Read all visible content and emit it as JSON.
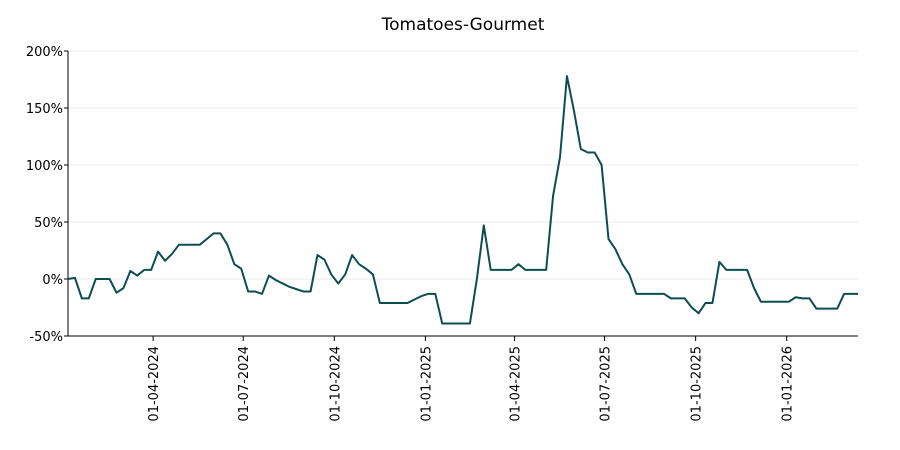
{
  "chart_data": {
    "type": "line",
    "title": "Tomatoes-Gourmet",
    "x": [
      "2024-01-06",
      "2024-01-13",
      "2024-01-20",
      "2024-01-27",
      "2024-02-03",
      "2024-02-10",
      "2024-02-17",
      "2024-02-24",
      "2024-03-02",
      "2024-03-09",
      "2024-03-16",
      "2024-03-23",
      "2024-03-30",
      "2024-04-06",
      "2024-04-13",
      "2024-04-20",
      "2024-04-27",
      "2024-05-04",
      "2024-05-11",
      "2024-05-18",
      "2024-05-25",
      "2024-06-01",
      "2024-06-08",
      "2024-06-15",
      "2024-06-22",
      "2024-06-29",
      "2024-07-06",
      "2024-07-13",
      "2024-07-20",
      "2024-07-27",
      "2024-08-03",
      "2024-08-10",
      "2024-08-17",
      "2024-08-24",
      "2024-08-31",
      "2024-09-07",
      "2024-09-14",
      "2024-09-21",
      "2024-09-28",
      "2024-10-05",
      "2024-10-12",
      "2024-10-19",
      "2024-10-26",
      "2024-11-02",
      "2024-11-09",
      "2024-11-16",
      "2024-11-23",
      "2024-11-30",
      "2024-12-07",
      "2024-12-14",
      "2024-12-21",
      "2024-12-28",
      "2025-01-04",
      "2025-01-11",
      "2025-01-18",
      "2025-01-25",
      "2025-02-01",
      "2025-02-08",
      "2025-02-15",
      "2025-02-22",
      "2025-03-01",
      "2025-03-08",
      "2025-03-15",
      "2025-03-22",
      "2025-03-29",
      "2025-04-05",
      "2025-04-12",
      "2025-04-19",
      "2025-04-26",
      "2025-05-03",
      "2025-05-10",
      "2025-05-17",
      "2025-05-24",
      "2025-05-31",
      "2025-06-07",
      "2025-06-14",
      "2025-06-21",
      "2025-06-28",
      "2025-07-05",
      "2025-07-12",
      "2025-07-19",
      "2025-07-26",
      "2025-08-02",
      "2025-08-09",
      "2025-08-16",
      "2025-08-23",
      "2025-08-30",
      "2025-09-06",
      "2025-09-13",
      "2025-09-20",
      "2025-09-27",
      "2025-10-04",
      "2025-10-11",
      "2025-10-18",
      "2025-10-25",
      "2025-11-01",
      "2025-11-08",
      "2025-11-15",
      "2025-11-22",
      "2025-11-29",
      "2025-12-06",
      "2025-12-13",
      "2025-12-20",
      "2025-12-27",
      "2026-01-03",
      "2026-01-10",
      "2026-01-17",
      "2026-01-24",
      "2026-01-31",
      "2026-02-07",
      "2026-02-14",
      "2026-02-21",
      "2026-02-28",
      "2026-03-07",
      "2026-03-14"
    ],
    "series": [
      {
        "color": "#0e4d4f",
        "values": [
          0,
          1,
          -17,
          -17,
          0,
          0,
          0,
          -12,
          -8,
          7,
          3,
          8,
          8,
          24,
          16,
          22,
          30,
          30,
          30,
          30,
          35,
          40,
          40,
          30,
          13,
          9,
          -11,
          -11,
          -13,
          3,
          -1,
          -4,
          -7,
          -9,
          -11,
          -11,
          21,
          17,
          4,
          -4,
          4,
          21,
          13,
          9,
          4,
          -21,
          -21,
          -21,
          -21,
          -21,
          -18,
          -15,
          -13,
          -13,
          -39,
          -39,
          -39,
          -39,
          -39,
          0,
          47,
          8,
          8,
          8,
          8,
          13,
          8,
          8,
          8,
          8,
          73,
          107,
          178,
          148,
          114,
          111,
          111,
          100,
          35,
          26,
          13,
          4,
          -13,
          -13,
          -13,
          -13,
          -13,
          -17,
          -17,
          -17,
          -25,
          -30,
          -21,
          -21,
          15,
          8,
          8,
          8,
          8,
          -8,
          -20,
          -20,
          -20,
          -20,
          -20,
          -16,
          -17,
          -17,
          -26,
          -26,
          -26,
          -26,
          -13,
          -13,
          -13
        ]
      }
    ],
    "xlim": [
      "2024-01-06",
      "2026-03-14"
    ],
    "xticks": [
      {
        "value": "2024-04-01",
        "label": "01-04-2024"
      },
      {
        "value": "2024-07-01",
        "label": "01-07-2024"
      },
      {
        "value": "2024-10-01",
        "label": "01-10-2024"
      },
      {
        "value": "2025-01-01",
        "label": "01-01-2025"
      },
      {
        "value": "2025-04-01",
        "label": "01-04-2025"
      },
      {
        "value": "2025-07-01",
        "label": "01-07-2025"
      },
      {
        "value": "2025-10-01",
        "label": "01-10-2025"
      },
      {
        "value": "2026-01-01",
        "label": "01-01-2026"
      }
    ],
    "ylim": [
      -50,
      200
    ],
    "yticks": [
      {
        "value": -50,
        "label": "-50%"
      },
      {
        "value": 0,
        "label": "0%"
      },
      {
        "value": 50,
        "label": "50%"
      },
      {
        "value": 100,
        "label": "100%"
      },
      {
        "value": 150,
        "label": "150%"
      },
      {
        "value": 200,
        "label": "200%"
      }
    ],
    "grid": true
  }
}
